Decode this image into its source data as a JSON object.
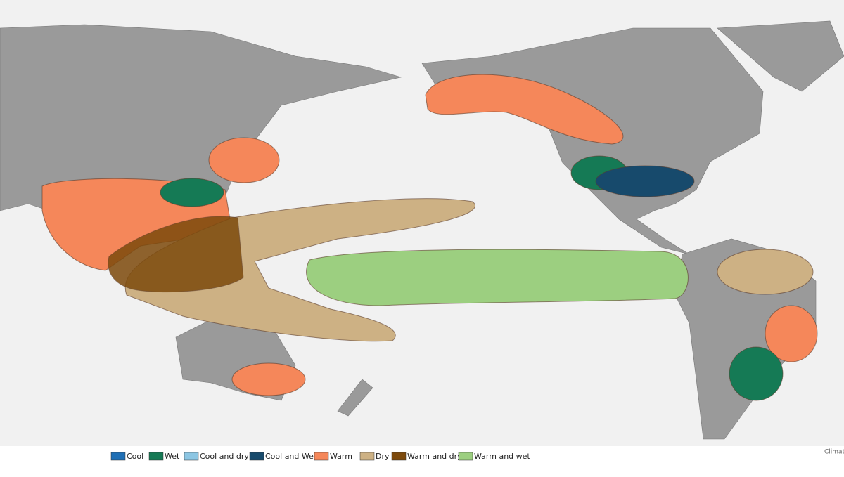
{
  "legend": {
    "items": [
      {
        "label": "Cool",
        "color": "#1f6fb5"
      },
      {
        "label": "Wet",
        "color": "#157a55"
      },
      {
        "label": "Cool and dry",
        "color": "#8cc6e3"
      },
      {
        "label": "Cool and Wet",
        "color": "#174a6c"
      },
      {
        "label": "Warm",
        "color": "#f5875a"
      },
      {
        "label": "Dry",
        "color": "#cdb184"
      },
      {
        "label": "Warm and dry",
        "color": "#7d4a0c"
      },
      {
        "label": "Warm and wet",
        "color": "#9ccf80"
      }
    ]
  },
  "credit": "Climat"
}
